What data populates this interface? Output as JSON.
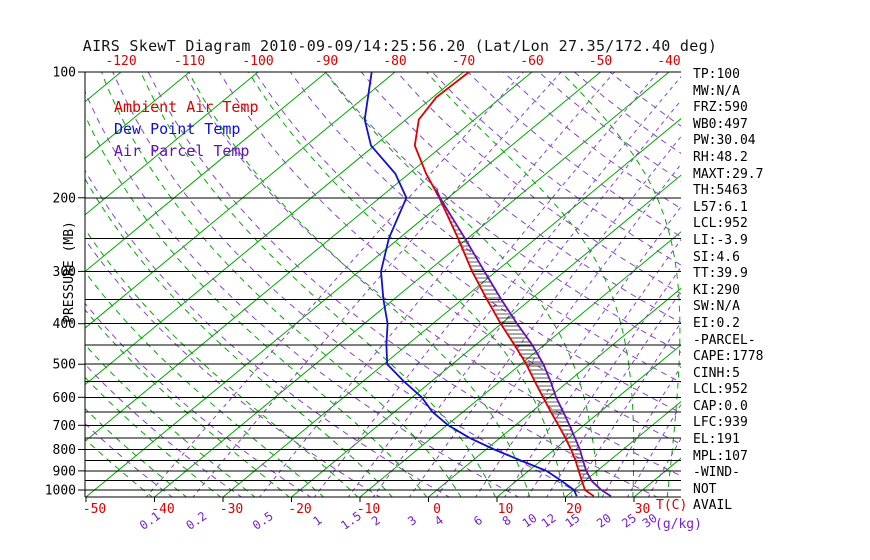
{
  "chart_data": {
    "type": "line",
    "subtype": "skew-t-log-p",
    "title": "AIRS SkewT Diagram 2010-09-09/14:25:56.20 (Lat/Lon 27.35/172.40 deg)",
    "pressure_axis": {
      "label": "PRESSURE (MB)",
      "scale": "log",
      "range_mb": [
        100,
        1040
      ],
      "major_ticks_mb": [
        100,
        200,
        300,
        400,
        500,
        600,
        700,
        800,
        900,
        1000
      ],
      "minor_ticks_mb": [
        250,
        350,
        450,
        550,
        650,
        750,
        850,
        950
      ]
    },
    "temp_axis": {
      "label": "T(C)",
      "unit": "C",
      "bottom_ticks_c": [
        -50,
        -40,
        -30,
        -20,
        -10,
        0,
        10,
        20,
        30
      ],
      "top_ticks_c": [
        -120,
        -110,
        -100,
        -90,
        -80,
        -70,
        -60,
        -50,
        -40
      ]
    },
    "mixing_ratio_axis": {
      "label": "(g/kg)",
      "ticks_g_kg": [
        0.1,
        0.2,
        0.5,
        1,
        1.5,
        2,
        3,
        4,
        6,
        8,
        10,
        12,
        15,
        20,
        25,
        30
      ]
    },
    "background_lines": {
      "isotherms_c": {
        "min": -140,
        "max": 40,
        "step": 10
      },
      "moist_adiabats_start_c": {
        "min": -40,
        "max": 40,
        "step": 5
      },
      "dry_adiabats_theta_c": {
        "min": -40,
        "max": 160,
        "step": 10
      },
      "mixing_ratio_g_per_kg": [
        0.1,
        0.2,
        0.5,
        1,
        1.5,
        2,
        3,
        4,
        6,
        8,
        10,
        12,
        15,
        20,
        25,
        30
      ]
    },
    "series": [
      {
        "name": "Ambient Air Temp",
        "color": "#DD0000",
        "points_p_t": [
          [
            1035,
            24
          ],
          [
            1000,
            21.6
          ],
          [
            950,
            19.5
          ],
          [
            900,
            17.3
          ],
          [
            850,
            15
          ],
          [
            800,
            12.4
          ],
          [
            750,
            9.5
          ],
          [
            700,
            6.3
          ],
          [
            650,
            2.8
          ],
          [
            600,
            -0.9
          ],
          [
            550,
            -4.9
          ],
          [
            500,
            -9.2
          ],
          [
            450,
            -14.3
          ],
          [
            400,
            -20.1
          ],
          [
            350,
            -26.4
          ],
          [
            300,
            -33.5
          ],
          [
            250,
            -41.4
          ],
          [
            200,
            -51.3
          ],
          [
            175,
            -57.5
          ],
          [
            150,
            -64.1
          ],
          [
            130,
            -68.1
          ],
          [
            115,
            -69.5
          ],
          [
            100,
            -69.2
          ]
        ]
      },
      {
        "name": "Dew Point Temp",
        "color": "#1111CC",
        "points_p_t": [
          [
            1035,
            21.5
          ],
          [
            1000,
            20
          ],
          [
            950,
            16.5
          ],
          [
            900,
            12.6
          ],
          [
            850,
            7
          ],
          [
            800,
            1.2
          ],
          [
            750,
            -4.5
          ],
          [
            700,
            -9.8
          ],
          [
            650,
            -14.5
          ],
          [
            600,
            -18.6
          ],
          [
            550,
            -24
          ],
          [
            500,
            -29.5
          ],
          [
            450,
            -33
          ],
          [
            400,
            -36.6
          ],
          [
            350,
            -41.5
          ],
          [
            300,
            -46.8
          ],
          [
            250,
            -51.5
          ],
          [
            200,
            -56.1
          ],
          [
            175,
            -62
          ],
          [
            150,
            -70.5
          ],
          [
            130,
            -76
          ],
          [
            100,
            -83.4
          ]
        ]
      },
      {
        "name": "Air Parcel Temp",
        "color": "#6611BB",
        "points_p_t": [
          [
            1035,
            26.5
          ],
          [
            1000,
            24
          ],
          [
            952,
            21
          ],
          [
            900,
            18.4
          ],
          [
            850,
            16.1
          ],
          [
            800,
            13.7
          ],
          [
            750,
            10.9
          ],
          [
            700,
            7.9
          ],
          [
            650,
            4.6
          ],
          [
            600,
            1
          ],
          [
            550,
            -2.6
          ],
          [
            500,
            -6.7
          ],
          [
            450,
            -11.7
          ],
          [
            400,
            -17.7
          ],
          [
            350,
            -24.3
          ],
          [
            300,
            -31.7
          ],
          [
            250,
            -40.4
          ],
          [
            200,
            -51.2
          ],
          [
            191,
            -53.2
          ]
        ]
      }
    ],
    "cape_hatch_between_mb": [
      939,
      191
    ]
  },
  "stats_panel": {
    "lines": [
      "TP:100",
      "MW:N/A",
      "FRZ:590",
      "WB0:497",
      "PW:30.04",
      "RH:48.2",
      "MAXT:29.7",
      "TH:5463",
      "L57:6.1",
      "LCL:952",
      "LI:-3.9",
      "SI:4.6",
      "TT:39.9",
      "KI:290",
      "SW:N/A",
      "EI:0.2",
      "-PARCEL-",
      "CAPE:1778",
      "CINH:5",
      "LCL:952",
      "CAP:0.0",
      "LFC:939",
      "EL:191",
      "MPL:107",
      "-WIND-",
      "NOT",
      "AVAIL"
    ]
  },
  "colors": {
    "isotherm": "#00AA00",
    "moist_adiabat": "#00AA00",
    "dry_adiabat": "#8844CC",
    "mixing_ratio": "#8844CC",
    "pressure_line": "#000000",
    "top_labels": "#DD0000",
    "bottom_temp_labels": "#DD0000",
    "mixing_labels": "#7722CC",
    "hatch": "#1A1A1A"
  }
}
